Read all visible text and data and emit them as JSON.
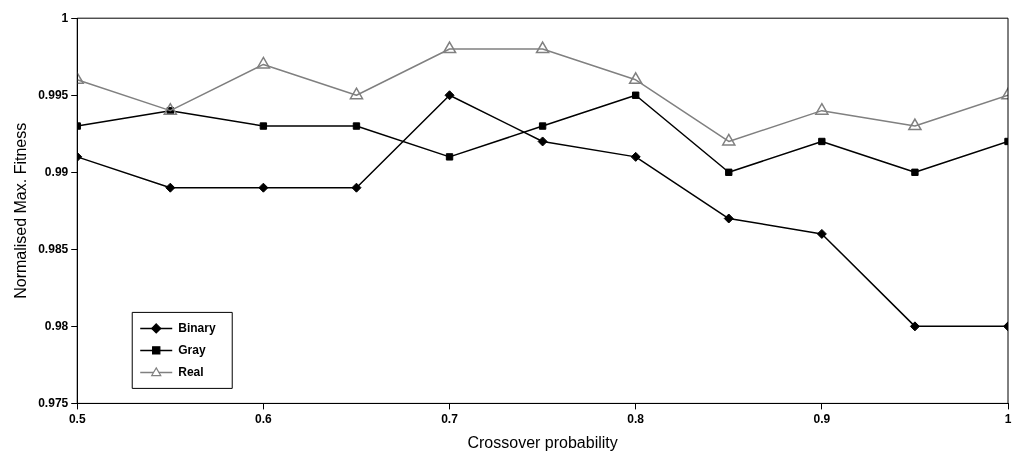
{
  "chart_data": {
    "type": "line",
    "xlabel": "Crossover probability",
    "ylabel": "Normalised Max. Fitness",
    "x": [
      0.5,
      0.55,
      0.6,
      0.65,
      0.7,
      0.75,
      0.8,
      0.85,
      0.9,
      0.95,
      1
    ],
    "series": [
      {
        "name": "Binary",
        "color": "#000000",
        "marker": "diamond",
        "values": [
          0.991,
          0.989,
          0.989,
          0.989,
          0.995,
          0.992,
          0.991,
          0.987,
          0.986,
          0.98,
          0.98
        ]
      },
      {
        "name": "Gray",
        "color": "#000000",
        "marker": "square",
        "values": [
          0.993,
          0.994,
          0.993,
          0.993,
          0.991,
          0.993,
          0.995,
          0.99,
          0.992,
          0.99,
          0.992
        ]
      },
      {
        "name": "Real",
        "color": "#808080",
        "marker": "triangle",
        "values": [
          0.996,
          0.994,
          0.997,
          0.995,
          0.998,
          0.998,
          0.996,
          0.992,
          0.994,
          0.993,
          0.995
        ]
      }
    ],
    "xlim": [
      0.5,
      1
    ],
    "xticks": [
      0.5,
      0.6,
      0.7,
      0.8,
      0.9,
      1
    ],
    "ylim": [
      0.975,
      1
    ],
    "yticks": [
      0.975,
      0.98,
      0.985,
      0.99,
      0.995,
      1
    ],
    "grid": false,
    "legend": "bottom left",
    "line_style": "solid"
  }
}
